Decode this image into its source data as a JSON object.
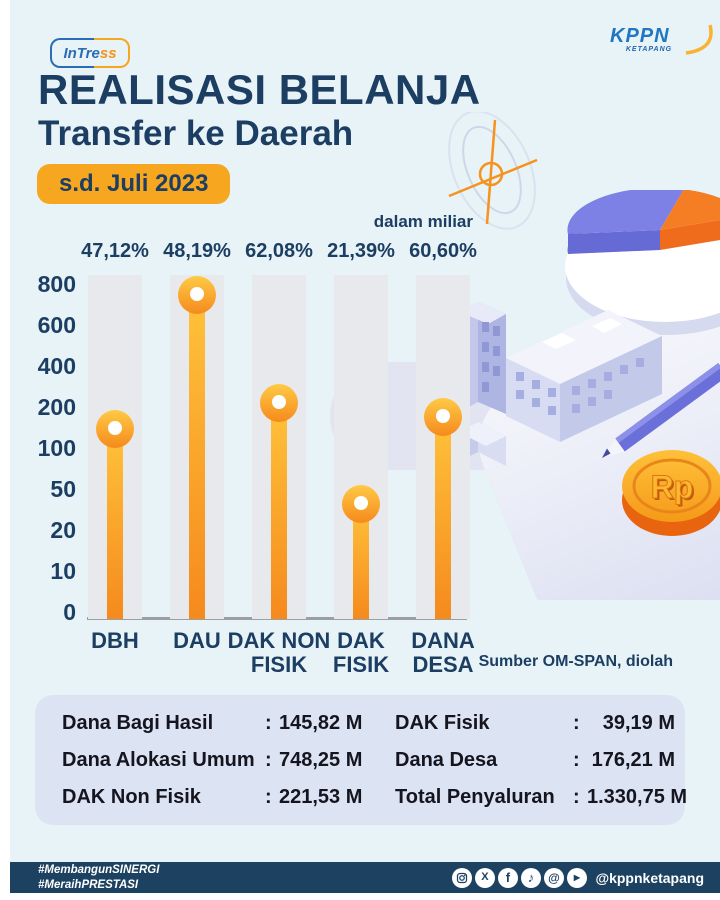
{
  "header": {
    "intress_logo": {
      "text_primary": "InTre",
      "text_accent": "ss"
    },
    "kppn_logo": {
      "name": "KPPN",
      "region": "KETAPANG"
    },
    "title": "REALISASI BELANJA",
    "subtitle": "Transfer ke Daerah",
    "period_badge": "s.d. Juli 2023"
  },
  "chart_data": {
    "type": "bar",
    "title": "Realisasi Belanja Transfer ke Daerah s.d. Juli 2023",
    "unit_note": "dalam miliar",
    "categories": [
      "DBH",
      "DAU",
      "DAK NON\nFISIK",
      "DAK\nFISIK",
      "DANA\nDESA"
    ],
    "values": [
      145.82,
      748.25,
      221.53,
      39.19,
      176.21
    ],
    "percent_labels": [
      "47,12%",
      "48,19%",
      "62,08%",
      "21,39%",
      "60,60%"
    ],
    "y_ticks": [
      800,
      600,
      400,
      200,
      100,
      50,
      20,
      10,
      0
    ],
    "xlabel": "",
    "ylabel": "",
    "grid": false,
    "legend": false,
    "source": "Sumber OM-SPAN, diolah"
  },
  "summary_table": {
    "separator": ":",
    "left": [
      {
        "label": "Dana Bagi Hasil",
        "value": "145,82 M"
      },
      {
        "label": "Dana Alokasi Umum",
        "value": "748,25 M"
      },
      {
        "label": "DAK Non Fisik",
        "value": "221,53 M"
      }
    ],
    "right": [
      {
        "label": "DAK Fisik",
        "value": "39,19 M"
      },
      {
        "label": "Dana Desa",
        "value": "176,21 M"
      },
      {
        "label": "Total Penyaluran",
        "value": "1.330,75 M"
      }
    ]
  },
  "footer": {
    "hashtags": [
      "#MembangunSINERGI",
      "#MeraihPRESTASI"
    ],
    "social_icons": [
      "instagram",
      "x",
      "facebook",
      "tiktok",
      "threads",
      "youtube"
    ],
    "handle": "@kppnketapang"
  },
  "colors": {
    "navy": "#1d3e63",
    "badge_orange": "#f6a61f",
    "pin_orange": "#f58a1d",
    "pin_yellow": "#ffc33c",
    "track_gray": "#e8e9ed",
    "table_bg": "#dce3f2",
    "footer_navy": "#1c4161",
    "poster_bg": "#e7f3f6"
  }
}
